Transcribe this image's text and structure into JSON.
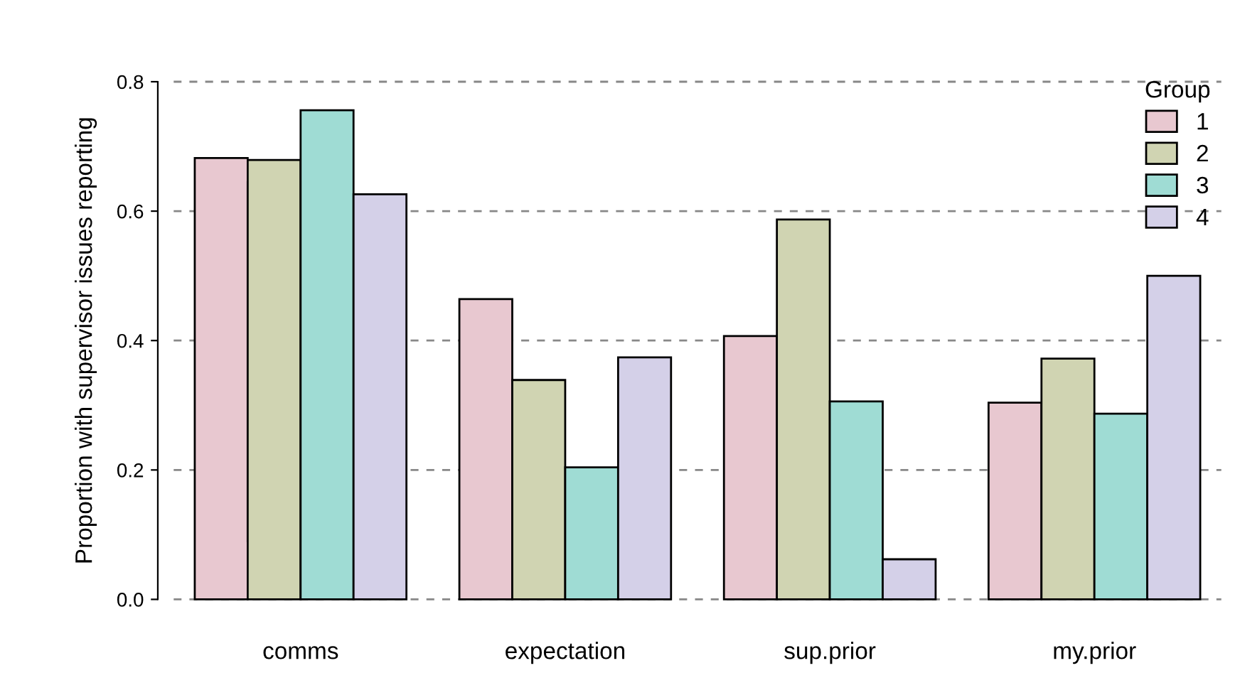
{
  "chart_data": {
    "type": "bar",
    "ylabel": "Proportion with supervisor issues reporting",
    "legend_title": "Group",
    "categories": [
      "comms",
      "expectation",
      "sup.prior",
      "my.prior"
    ],
    "series": [
      {
        "name": "1",
        "color": "#e8c8d0",
        "values": [
          0.682,
          0.464,
          0.407,
          0.304
        ]
      },
      {
        "name": "2",
        "color": "#d0d4b2",
        "values": [
          0.679,
          0.339,
          0.587,
          0.372
        ]
      },
      {
        "name": "3",
        "color": "#9fdcd4",
        "values": [
          0.756,
          0.204,
          0.306,
          0.287
        ]
      },
      {
        "name": "4",
        "color": "#d4d0e8",
        "values": [
          0.626,
          0.374,
          0.062,
          0.5
        ]
      }
    ],
    "ylim": [
      0,
      0.8
    ],
    "yticks": [
      {
        "value": 0,
        "label": "0.0"
      },
      {
        "value": 0.2,
        "label": "0.2"
      },
      {
        "value": 0.4,
        "label": "0.4"
      },
      {
        "value": 0.6,
        "label": "0.6"
      },
      {
        "value": 0.8,
        "label": "0.8"
      }
    ],
    "grid": "y",
    "legend": "top right"
  }
}
